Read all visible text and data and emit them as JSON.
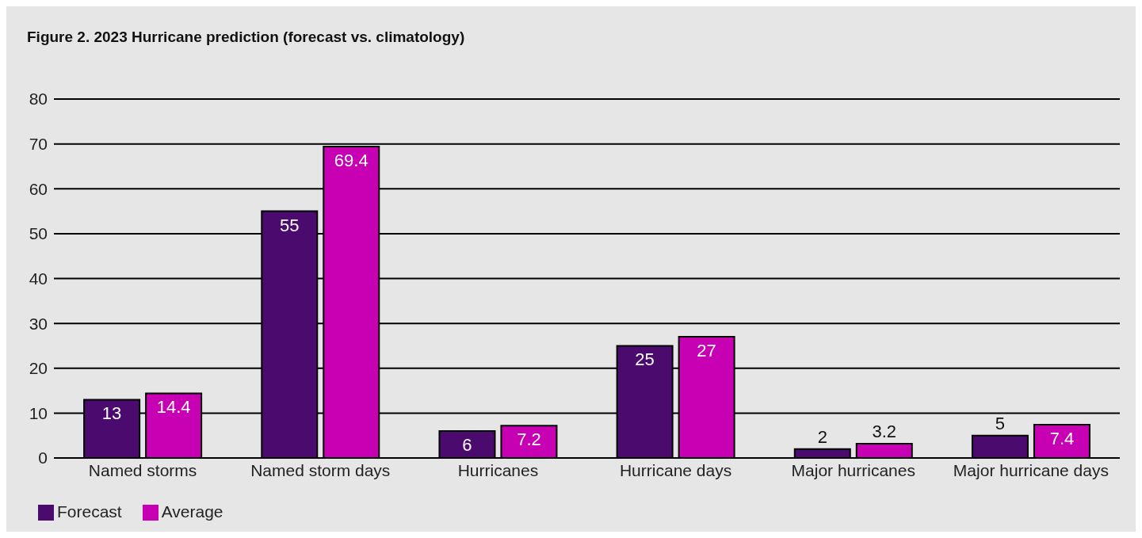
{
  "chart_data": {
    "type": "bar",
    "title": "Figure 2. 2023 Hurricane prediction (forecast vs. climatology)",
    "categories": [
      "Named storms",
      "Named storm days",
      "Hurricanes",
      "Hurricane days",
      "Major hurricanes",
      "Major hurricane days"
    ],
    "series": [
      {
        "name": "Forecast",
        "color": "#4b0a6e",
        "values": [
          13,
          55,
          6,
          25,
          2,
          5
        ]
      },
      {
        "name": "Average",
        "color": "#c800b4",
        "values": [
          14.4,
          69.4,
          7.2,
          27,
          3.2,
          7.4
        ]
      }
    ],
    "ylim": [
      0,
      80
    ],
    "yticks": [
      0,
      10,
      20,
      30,
      40,
      50,
      60,
      70,
      80
    ],
    "grid": "y",
    "legend": "bottom left",
    "data_labels": true
  }
}
